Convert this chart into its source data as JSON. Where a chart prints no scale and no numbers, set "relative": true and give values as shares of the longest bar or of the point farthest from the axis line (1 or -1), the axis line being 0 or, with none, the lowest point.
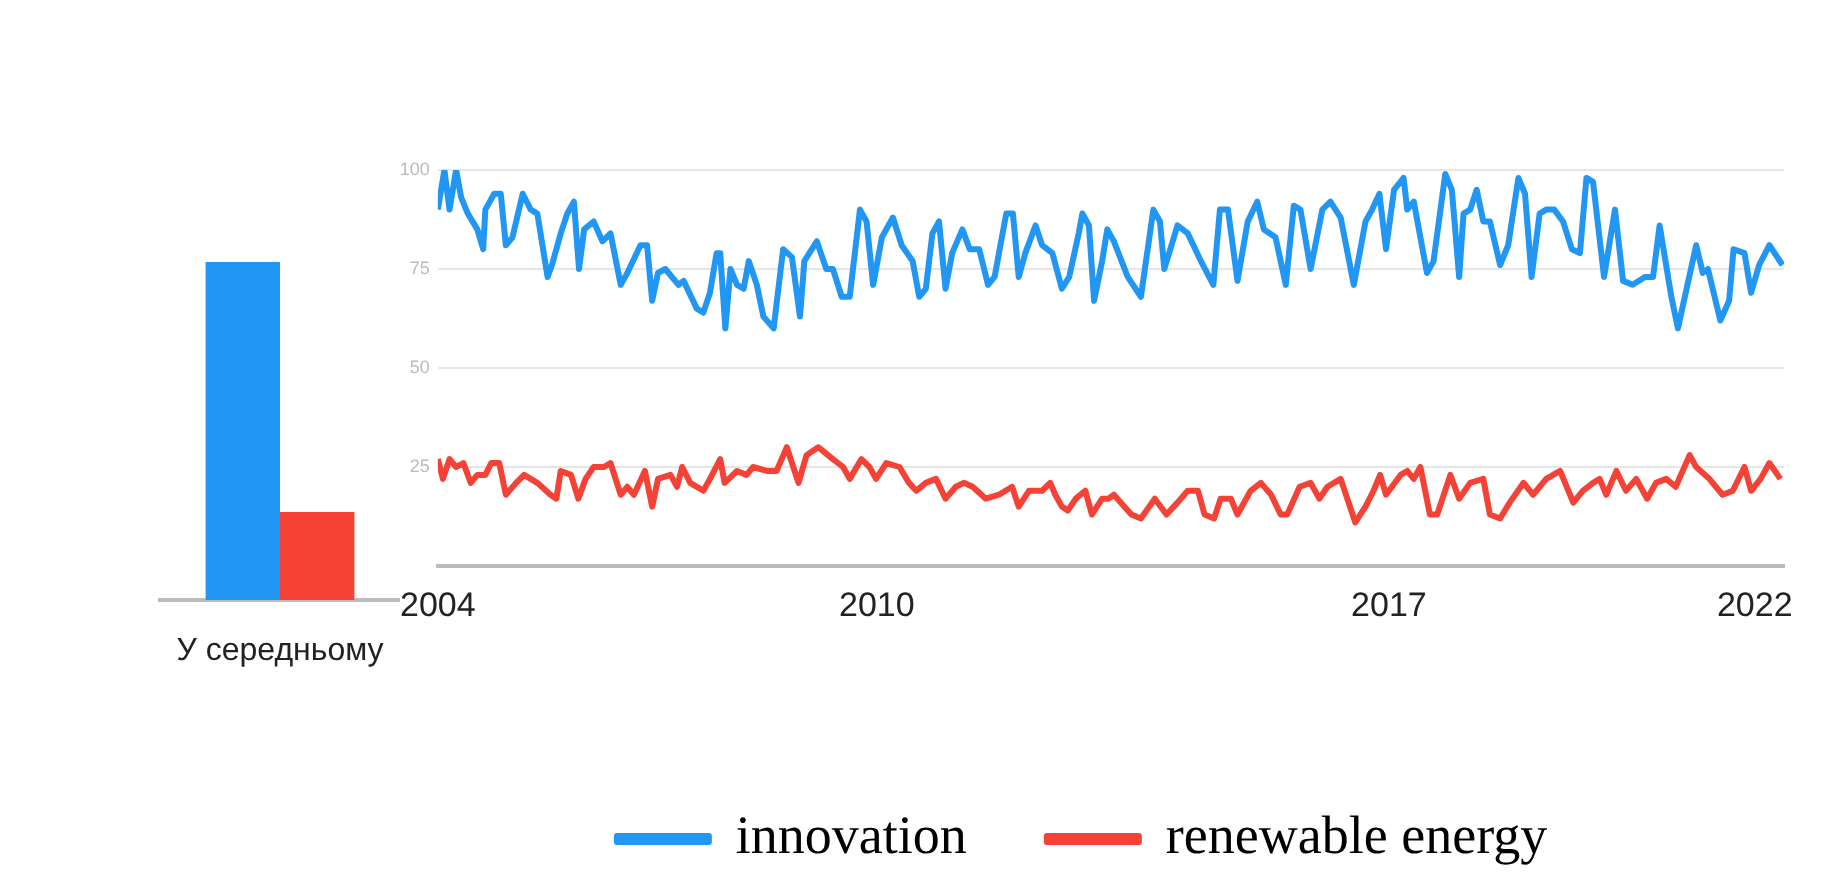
{
  "chart_data": [
    {
      "type": "bar",
      "relative": true,
      "categories": [
        "У середньому"
      ],
      "legend": false,
      "grid": false,
      "series": [
        {
          "color": "#2196f3",
          "values": [
            1
          ]
        },
        {
          "color": "#f44336",
          "values": [
            0.26
          ]
        }
      ]
    },
    {
      "type": "line",
      "xlim": [
        2004,
        2022.4
      ],
      "xticks": [
        2004,
        2010,
        2017,
        2022
      ],
      "ylim": [
        0,
        100
      ],
      "yticks": [
        25,
        50,
        75,
        100
      ],
      "grid": "y",
      "legend": "bottom",
      "marker": "none",
      "line_style": "solid",
      "series": [
        {
          "name": "innovation",
          "color": "#2196f3",
          "x": [
            2004.0,
            2004.09,
            2004.16,
            2004.25,
            2004.32,
            2004.41,
            2004.54,
            2004.62,
            2004.65,
            2004.77,
            2004.86,
            2004.93,
            2005.02,
            2005.16,
            2005.27,
            2005.36,
            2005.5,
            2005.56,
            2005.68,
            2005.77,
            2005.86,
            2005.93,
            2006.0,
            2006.13,
            2006.25,
            2006.36,
            2006.5,
            2006.59,
            2006.77,
            2006.86,
            2006.93,
            2007.01,
            2007.11,
            2007.29,
            2007.36,
            2007.54,
            2007.63,
            2007.72,
            2007.81,
            2007.86,
            2007.93,
            2008.0,
            2008.09,
            2008.18,
            2008.25,
            2008.36,
            2008.45,
            2008.59,
            2008.72,
            2008.84,
            2008.95,
            2009.01,
            2009.18,
            2009.31,
            2009.4,
            2009.52,
            2009.63,
            2009.77,
            2009.86,
            2009.95,
            2010.07,
            2010.22,
            2010.34,
            2010.49,
            2010.58,
            2010.67,
            2010.76,
            2010.85,
            2010.94,
            2011.03,
            2011.17,
            2011.27,
            2011.4,
            2011.52,
            2011.61,
            2011.77,
            2011.86,
            2011.94,
            2012.03,
            2012.17,
            2012.26,
            2012.4,
            2012.53,
            2012.63,
            2012.76,
            2012.81,
            2012.9,
            2012.97,
            2013.08,
            2013.15,
            2013.24,
            2013.43,
            2013.61,
            2013.78,
            2013.87,
            2013.93,
            2014.11,
            2014.25,
            2014.43,
            2014.6,
            2014.69,
            2014.8,
            2014.93,
            2015.07,
            2015.2,
            2015.29,
            2015.45,
            2015.59,
            2015.7,
            2015.79,
            2015.93,
            2016.09,
            2016.2,
            2016.34,
            2016.52,
            2016.68,
            2016.77,
            2016.87,
            2016.96,
            2017.07,
            2017.2,
            2017.25,
            2017.34,
            2017.52,
            2017.61,
            2017.77,
            2017.86,
            2017.96,
            2018.02,
            2018.11,
            2018.2,
            2018.29,
            2018.38,
            2018.52,
            2018.63,
            2018.77,
            2018.86,
            2018.95,
            2019.06,
            2019.15,
            2019.26,
            2019.38,
            2019.5,
            2019.61,
            2019.7,
            2019.79,
            2019.94,
            2020.09,
            2020.2,
            2020.33,
            2020.5,
            2020.61,
            2020.7,
            2020.86,
            2020.95,
            2021.08,
            2021.2,
            2021.29,
            2021.36,
            2021.53,
            2021.65,
            2021.71,
            2021.86,
            2021.95,
            2022.06,
            2022.2,
            2022.38
          ],
          "values": [
            90,
            100,
            90,
            100,
            93,
            89,
            85,
            80,
            90,
            94,
            94,
            81,
            83,
            94,
            90,
            89,
            73,
            76,
            84,
            89,
            92,
            75,
            85,
            87,
            82,
            84,
            71,
            74,
            81,
            81,
            67,
            74,
            75,
            71,
            72,
            65,
            64,
            69,
            79,
            79,
            60,
            75,
            71,
            70,
            77,
            71,
            63,
            60,
            80,
            78,
            63,
            77,
            82,
            75,
            75,
            68,
            68,
            90,
            87,
            71,
            83,
            88,
            81,
            77,
            68,
            70,
            84,
            87,
            70,
            79,
            85,
            80,
            80,
            71,
            73,
            89,
            89,
            73,
            79,
            86,
            81,
            79,
            70,
            73,
            84,
            89,
            86,
            67,
            77,
            85,
            82,
            73,
            68,
            90,
            87,
            75,
            86,
            84,
            77,
            71,
            90,
            90,
            72,
            87,
            92,
            85,
            83,
            71,
            91,
            90,
            75,
            90,
            92,
            88,
            71,
            87,
            90,
            94,
            80,
            95,
            98,
            90,
            92,
            74,
            77,
            99,
            95,
            73,
            89,
            90,
            95,
            87,
            87,
            76,
            81,
            98,
            94,
            73,
            89,
            90,
            90,
            87,
            80,
            79,
            98,
            97,
            73,
            90,
            72,
            71,
            73,
            73,
            86,
            68,
            60,
            71,
            81,
            74,
            75,
            62,
            67,
            80,
            79,
            69,
            76,
            81,
            76
          ]
        },
        {
          "name": "renewable energy",
          "color": "#f44336",
          "x": [
            2004.0,
            2004.07,
            2004.16,
            2004.25,
            2004.35,
            2004.45,
            2004.54,
            2004.65,
            2004.73,
            2004.84,
            2004.93,
            2005.07,
            2005.18,
            2005.36,
            2005.54,
            2005.62,
            2005.68,
            2005.82,
            2005.92,
            2006.02,
            2006.13,
            2006.27,
            2006.36,
            2006.5,
            2006.59,
            2006.68,
            2006.83,
            2006.93,
            2007.01,
            2007.18,
            2007.27,
            2007.34,
            2007.45,
            2007.63,
            2007.72,
            2007.86,
            2007.92,
            2008.09,
            2008.22,
            2008.31,
            2008.5,
            2008.63,
            2008.77,
            2008.93,
            2009.04,
            2009.2,
            2009.4,
            2009.54,
            2009.63,
            2009.79,
            2009.9,
            2009.99,
            2010.13,
            2010.31,
            2010.44,
            2010.54,
            2010.67,
            2010.81,
            2010.94,
            2011.08,
            2011.19,
            2011.31,
            2011.49,
            2011.67,
            2011.76,
            2011.85,
            2011.94,
            2012.08,
            2012.26,
            2012.37,
            2012.44,
            2012.53,
            2012.61,
            2012.72,
            2012.85,
            2012.94,
            2013.08,
            2013.17,
            2013.24,
            2013.48,
            2013.61,
            2013.8,
            2013.96,
            2014.11,
            2014.25,
            2014.39,
            2014.48,
            2014.61,
            2014.7,
            2014.84,
            2014.93,
            2015.11,
            2015.25,
            2015.39,
            2015.52,
            2015.61,
            2015.78,
            2015.93,
            2016.05,
            2016.16,
            2016.34,
            2016.54,
            2016.68,
            2016.79,
            2016.88,
            2016.96,
            2017.16,
            2017.25,
            2017.34,
            2017.43,
            2017.56,
            2017.66,
            2017.84,
            2017.96,
            2018.11,
            2018.29,
            2018.38,
            2018.52,
            2018.65,
            2018.84,
            2018.97,
            2019.15,
            2019.34,
            2019.52,
            2019.65,
            2019.79,
            2019.88,
            2019.97,
            2020.11,
            2020.24,
            2020.38,
            2020.53,
            2020.65,
            2020.79,
            2020.92,
            2021.11,
            2021.2,
            2021.38,
            2021.56,
            2021.7,
            2021.86,
            2021.95,
            2022.08,
            2022.2,
            2022.35
          ],
          "values": [
            27,
            22,
            27,
            25,
            26,
            21,
            23,
            23,
            26,
            26,
            18,
            21,
            23,
            21,
            18,
            17,
            24,
            23,
            17,
            22,
            25,
            25,
            26,
            18,
            20,
            18,
            24,
            15,
            22,
            23,
            20,
            25,
            21,
            19,
            22,
            27,
            21,
            24,
            23,
            25,
            24,
            24,
            30,
            21,
            28,
            30,
            27,
            25,
            22,
            27,
            25,
            22,
            26,
            25,
            21,
            19,
            21,
            22,
            17,
            20,
            21,
            20,
            17,
            18,
            19,
            20,
            15,
            19,
            19,
            21,
            18,
            15,
            14,
            17,
            19,
            13,
            17,
            17,
            18,
            13,
            12,
            17,
            13,
            16,
            19,
            19,
            13,
            12,
            17,
            17,
            13,
            19,
            21,
            18,
            13,
            13,
            20,
            21,
            17,
            20,
            22,
            11,
            15,
            19,
            23,
            18,
            23,
            24,
            22,
            25,
            13,
            13,
            23,
            17,
            21,
            22,
            13,
            12,
            16,
            21,
            18,
            22,
            24,
            16,
            19,
            21,
            22,
            18,
            24,
            19,
            22,
            17,
            21,
            22,
            20,
            28,
            25,
            22,
            18,
            19,
            25,
            19,
            22,
            26,
            22
          ]
        }
      ]
    }
  ]
}
